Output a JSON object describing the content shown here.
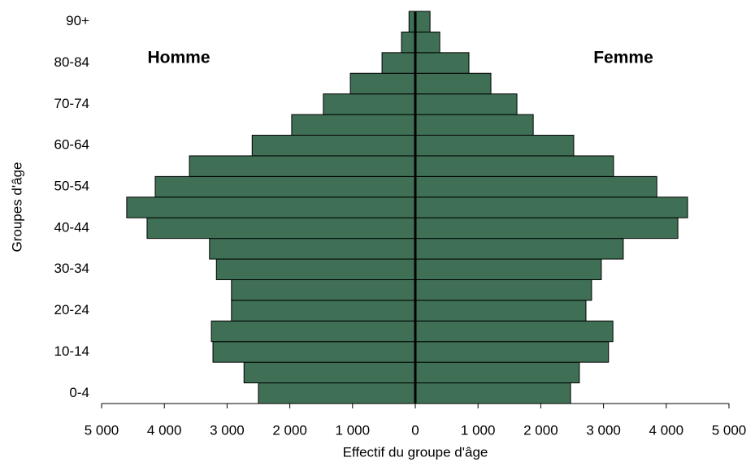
{
  "chart_data": {
    "type": "pyramid",
    "xlabel": "Effectif du groupe d'âge",
    "ylabel": "Groupes d'âge",
    "categories": [
      "0-4",
      null,
      "10-14",
      null,
      "20-24",
      null,
      "30-34",
      null,
      "40-44",
      null,
      "50-54",
      null,
      "60-64",
      null,
      "70-74",
      null,
      "80-84",
      null,
      "90+"
    ],
    "series": [
      {
        "name": "Homme",
        "color": "#3f7055",
        "values": [
          -2500,
          -2730,
          -3225,
          -3250,
          -2930,
          -2930,
          -3170,
          -3280,
          -4275,
          -4600,
          -4145,
          -3600,
          -2600,
          -1970,
          -1465,
          -1035,
          -530,
          -220,
          -100
        ]
      },
      {
        "name": "Femme",
        "color": "#3f7055",
        "values": [
          2475,
          2615,
          3080,
          3150,
          2720,
          2810,
          2965,
          3315,
          4185,
          4340,
          3850,
          3160,
          2525,
          1880,
          1620,
          1205,
          855,
          390,
          235
        ]
      }
    ],
    "xlim": [
      -5000,
      5000
    ],
    "xticks": [
      {
        "value": -5000,
        "label": "5 000"
      },
      {
        "value": -4000,
        "label": "4 000"
      },
      {
        "value": -3000,
        "label": "3 000"
      },
      {
        "value": -2000,
        "label": "2 000"
      },
      {
        "value": -1000,
        "label": "1 000"
      },
      0,
      {
        "value": 1000,
        "label": "1 000"
      },
      {
        "value": 2000,
        "label": "2 000"
      },
      {
        "value": 3000,
        "label": "3 000"
      },
      {
        "value": 4000,
        "label": "4 000"
      },
      {
        "value": 5000,
        "label": "5 000"
      }
    ]
  }
}
